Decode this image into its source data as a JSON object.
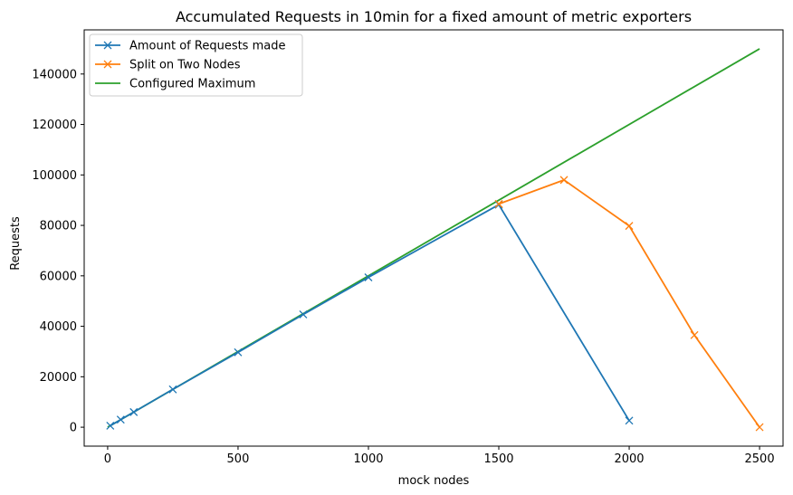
{
  "chart_data": {
    "type": "line",
    "title": "Accumulated Requests in 10min for a fixed amount of metric exporters",
    "xlabel": "mock nodes",
    "ylabel": "Requests",
    "xlim": [
      -90,
      2590
    ],
    "ylim": [
      -7500,
      157500
    ],
    "xticks": [
      0,
      500,
      1000,
      1500,
      2000,
      2500
    ],
    "yticks": [
      0,
      20000,
      40000,
      60000,
      80000,
      100000,
      120000,
      140000
    ],
    "grid": false,
    "legend_position": "upper-left",
    "series": [
      {
        "name": "Amount of Requests made",
        "color": "#1f77b4",
        "marker": "x",
        "x": [
          10,
          50,
          100,
          250,
          500,
          750,
          1000,
          1500,
          2000
        ],
        "y": [
          600,
          3000,
          6000,
          15000,
          29700,
          44700,
          59400,
          88200,
          2600
        ]
      },
      {
        "name": "Split on Two Nodes",
        "color": "#ff7f0e",
        "marker": "x",
        "x": [
          1500,
          1750,
          2000,
          2250,
          2500
        ],
        "y": [
          88500,
          98000,
          79800,
          36500,
          0
        ]
      },
      {
        "name": "Configured Maximum",
        "color": "#2ca02c",
        "marker": "none",
        "x": [
          0,
          2500
        ],
        "y": [
          0,
          150000
        ]
      }
    ]
  }
}
